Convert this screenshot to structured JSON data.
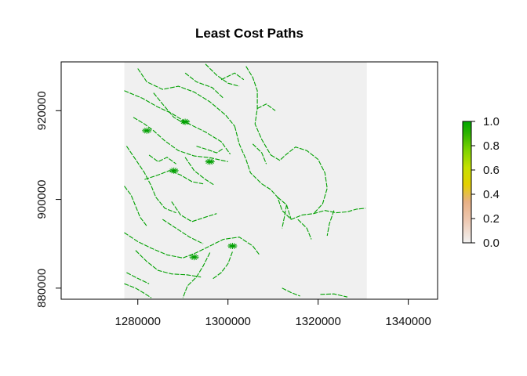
{
  "chart_data": {
    "type": "raster-map",
    "title": "Least Cost Paths",
    "x_ticks": [
      1280000,
      1300000,
      1320000,
      1340000
    ],
    "x_tick_labels": [
      "1280000",
      "1300000",
      "1320000",
      "1340000"
    ],
    "y_ticks": [
      880000,
      900000,
      920000
    ],
    "y_tick_labels": [
      "880000",
      "900000",
      "920000"
    ],
    "xlim": [
      1263000,
      1346500
    ],
    "ylim": [
      877500,
      931000
    ],
    "raster_extent": {
      "x": [
        1277000,
        1330800
      ],
      "y": [
        877500,
        931000
      ]
    },
    "raster_background_color": "#f0f0f0",
    "path_color": "#00a000",
    "legend": {
      "ticks": [
        0.0,
        0.2,
        0.4,
        0.6,
        0.8,
        1.0
      ],
      "tick_labels": [
        "0.0",
        "0.2",
        "0.4",
        "0.6",
        "0.8",
        "1.0"
      ],
      "colormap": "terrain",
      "placement": "right"
    },
    "paths": [
      [
        [
          1277000,
          924500
        ],
        [
          1281000,
          922800
        ],
        [
          1284500,
          920800
        ],
        [
          1287500,
          919400
        ],
        [
          1291000,
          917200
        ],
        [
          1295000,
          915200
        ],
        [
          1298500,
          913000
        ],
        [
          1300500,
          910200
        ]
      ],
      [
        [
          1279000,
          918500
        ],
        [
          1281500,
          917000
        ],
        [
          1283500,
          915500
        ],
        [
          1286000,
          913200
        ],
        [
          1289000,
          911000
        ],
        [
          1292500,
          909800
        ],
        [
          1296000,
          909400
        ],
        [
          1300000,
          908500
        ]
      ],
      [
        [
          1277500,
          912000
        ],
        [
          1279500,
          909000
        ],
        [
          1281500,
          906000
        ],
        [
          1283000,
          903000
        ],
        [
          1284000,
          900500
        ]
      ],
      [
        [
          1280000,
          929500
        ],
        [
          1282000,
          926500
        ],
        [
          1285500,
          924800
        ],
        [
          1289000,
          925500
        ],
        [
          1292500,
          924200
        ],
        [
          1296000,
          922000
        ],
        [
          1299500,
          919000
        ],
        [
          1301500,
          916500
        ]
      ],
      [
        [
          1290500,
          928500
        ],
        [
          1293000,
          926500
        ],
        [
          1296500,
          925200
        ],
        [
          1299000,
          922800
        ]
      ],
      [
        [
          1295000,
          930500
        ],
        [
          1297500,
          928000
        ],
        [
          1300000,
          926200
        ],
        [
          1302500,
          925500
        ]
      ],
      [
        [
          1304000,
          930000
        ],
        [
          1305500,
          927500
        ],
        [
          1306500,
          924500
        ],
        [
          1306500,
          920500
        ],
        [
          1306000,
          917000
        ],
        [
          1307500,
          913500
        ],
        [
          1309500,
          910000
        ]
      ],
      [
        [
          1301500,
          916500
        ],
        [
          1302500,
          912500
        ],
        [
          1304000,
          909000
        ],
        [
          1305000,
          906000
        ],
        [
          1307500,
          903500
        ]
      ],
      [
        [
          1307500,
          903500
        ],
        [
          1309500,
          902200
        ],
        [
          1311000,
          900500
        ],
        [
          1312000,
          897500
        ],
        [
          1314000,
          895500
        ],
        [
          1316500,
          896500
        ],
        [
          1319000,
          896800
        ],
        [
          1321500,
          897500
        ],
        [
          1324000,
          897000
        ],
        [
          1326500,
          897200
        ],
        [
          1328500,
          897800
        ],
        [
          1330500,
          898000
        ]
      ],
      [
        [
          1309500,
          910000
        ],
        [
          1311500,
          908800
        ],
        [
          1313000,
          910200
        ],
        [
          1315000,
          911800
        ],
        [
          1317500,
          911000
        ],
        [
          1320000,
          909000
        ],
        [
          1321500,
          906000
        ],
        [
          1322000,
          902500
        ],
        [
          1321000,
          899000
        ],
        [
          1319000,
          896800
        ]
      ],
      [
        [
          1311000,
          900500
        ],
        [
          1313000,
          898800
        ],
        [
          1314000,
          895500
        ]
      ],
      [
        [
          1313000,
          898800
        ],
        [
          1312500,
          896000
        ],
        [
          1312000,
          893500
        ]
      ],
      [
        [
          1323500,
          897500
        ],
        [
          1322500,
          894500
        ],
        [
          1322000,
          891800
        ]
      ],
      [
        [
          1277000,
          892500
        ],
        [
          1280000,
          890500
        ],
        [
          1283000,
          889000
        ],
        [
          1286500,
          887500
        ],
        [
          1290000,
          886800
        ],
        [
          1293000,
          888000
        ],
        [
          1296000,
          889500
        ],
        [
          1299000,
          891000
        ],
        [
          1302500,
          891500
        ],
        [
          1305500,
          889500
        ],
        [
          1307000,
          887500
        ]
      ],
      [
        [
          1279500,
          888500
        ],
        [
          1282000,
          886000
        ],
        [
          1284500,
          884000
        ],
        [
          1287500,
          883200
        ],
        [
          1291000,
          883000
        ],
        [
          1294000,
          882500
        ]
      ],
      [
        [
          1287500,
          899500
        ],
        [
          1289500,
          896500
        ],
        [
          1292000,
          895000
        ],
        [
          1295000,
          896000
        ],
        [
          1297500,
          896800
        ]
      ],
      [
        [
          1285500,
          895500
        ],
        [
          1288500,
          893500
        ],
        [
          1291500,
          891500
        ],
        [
          1294500,
          890000
        ]
      ],
      [
        [
          1296000,
          888000
        ],
        [
          1294500,
          885000
        ],
        [
          1293000,
          882500
        ],
        [
          1291000,
          880500
        ],
        [
          1290000,
          877800
        ]
      ],
      [
        [
          1277000,
          881000
        ],
        [
          1279500,
          880000
        ],
        [
          1281500,
          878800
        ],
        [
          1283000,
          877800
        ]
      ],
      [
        [
          1312000,
          880000
        ],
        [
          1314000,
          879000
        ],
        [
          1316000,
          878200
        ]
      ],
      [
        [
          1320500,
          878600
        ],
        [
          1323500,
          878700
        ],
        [
          1326500,
          878000
        ]
      ],
      [
        [
          1277500,
          883500
        ],
        [
          1280000,
          882200
        ],
        [
          1282500,
          881000
        ]
      ],
      [
        [
          1301000,
          888200
        ],
        [
          1300000,
          885500
        ],
        [
          1298500,
          883500
        ],
        [
          1296500,
          882000
        ]
      ],
      [
        [
          1281500,
          904500
        ],
        [
          1284500,
          905500
        ],
        [
          1287000,
          906500
        ],
        [
          1289500,
          905500
        ],
        [
          1292000,
          904000
        ],
        [
          1294500,
          903500
        ]
      ],
      [
        [
          1290500,
          909500
        ],
        [
          1292500,
          906500
        ],
        [
          1295000,
          904500
        ],
        [
          1297000,
          903200
        ]
      ],
      [
        [
          1284000,
          900500
        ],
        [
          1286000,
          898000
        ],
        [
          1288500,
          897000
        ]
      ],
      [
        [
          1282500,
          910000
        ],
        [
          1284500,
          908500
        ],
        [
          1286500,
          909500
        ],
        [
          1288500,
          908000
        ]
      ],
      [
        [
          1293000,
          912000
        ],
        [
          1295500,
          911200
        ],
        [
          1297500,
          910500
        ],
        [
          1299000,
          911500
        ]
      ],
      [
        [
          1277000,
          903000
        ],
        [
          1278500,
          901000
        ],
        [
          1279500,
          898500
        ],
        [
          1280500,
          896000
        ],
        [
          1282000,
          894000
        ]
      ],
      [
        [
          1283500,
          924000
        ],
        [
          1285500,
          921500
        ],
        [
          1288000,
          918500
        ],
        [
          1290500,
          917000
        ]
      ],
      [
        [
          1305500,
          912500
        ],
        [
          1307500,
          910500
        ],
        [
          1308500,
          908000
        ]
      ],
      [
        [
          1306500,
          920500
        ],
        [
          1308500,
          921500
        ],
        [
          1310500,
          920000
        ]
      ],
      [
        [
          1315500,
          895500
        ],
        [
          1317500,
          893500
        ],
        [
          1318500,
          891000
        ]
      ],
      [
        [
          1298500,
          927000
        ],
        [
          1301500,
          928500
        ],
        [
          1303500,
          927000
        ]
      ]
    ],
    "clusters": [
      [
        1282000,
        915500
      ],
      [
        1290500,
        917500
      ],
      [
        1296000,
        908500
      ],
      [
        1292500,
        887000
      ],
      [
        1288000,
        906500
      ],
      [
        1301000,
        889500
      ]
    ]
  }
}
